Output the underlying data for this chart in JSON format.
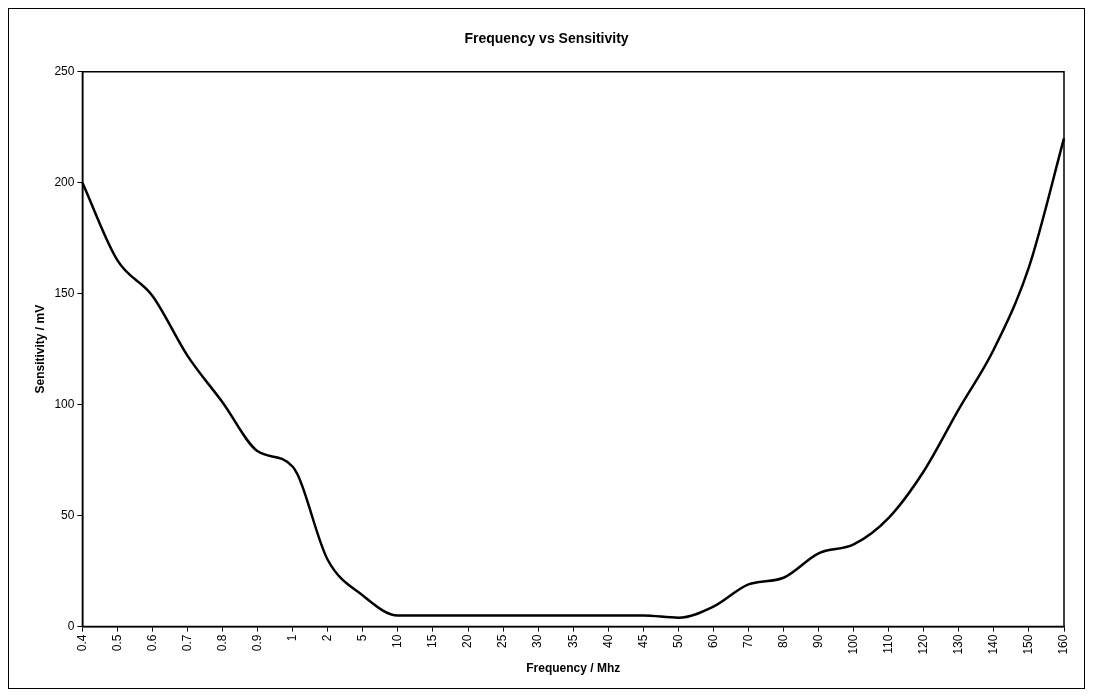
{
  "chart_data": {
    "type": "line",
    "title": "Frequency vs Sensitivity",
    "xlabel": "Frequency / Mhz",
    "ylabel": "Sensitivity / mV",
    "categories": [
      "0.4",
      "0.5",
      "0.6",
      "0.7",
      "0.8",
      "0.9",
      "1",
      "2",
      "5",
      "10",
      "15",
      "20",
      "25",
      "30",
      "35",
      "40",
      "45",
      "50",
      "60",
      "70",
      "80",
      "90",
      "100",
      "110",
      "120",
      "130",
      "140",
      "150",
      "160"
    ],
    "series": [
      {
        "color": "#000000",
        "values": [
          200,
          165,
          149,
          122,
          101,
          79,
          72,
          30,
          14,
          5,
          5,
          5,
          5,
          5,
          5,
          5,
          5,
          4,
          9,
          19,
          22,
          33,
          37,
          49,
          70,
          98,
          125,
          162,
          220
        ]
      }
    ],
    "ylim": [
      0,
      250
    ],
    "yticks": [
      0,
      50,
      100,
      150,
      200,
      250
    ],
    "grid": false,
    "legend": false,
    "marker": "none",
    "line_style": "solid"
  }
}
